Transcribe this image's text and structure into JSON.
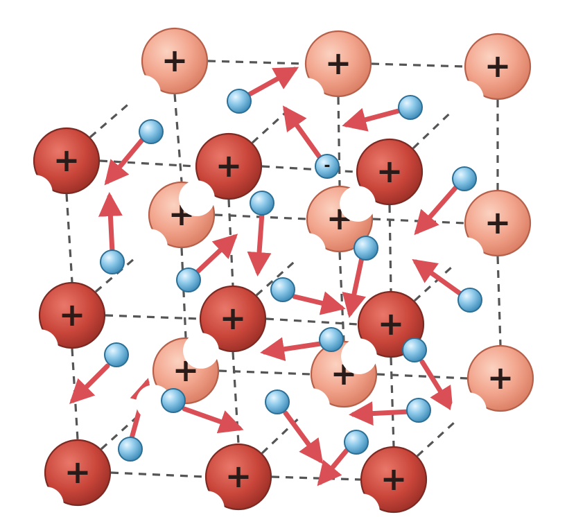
{
  "diagram": {
    "ion_label": "+",
    "electron_label": "-",
    "colors": {
      "ion_dark": "#c9453a",
      "ion_light": "#f2a48c",
      "ion_edge": "#7a2a22",
      "electron_fill": "#6fb6dc",
      "electron_edge": "#2d6f94",
      "arrow": "#d94f55",
      "lattice_line": "#555555",
      "sign": "#2a1a18"
    }
  }
}
